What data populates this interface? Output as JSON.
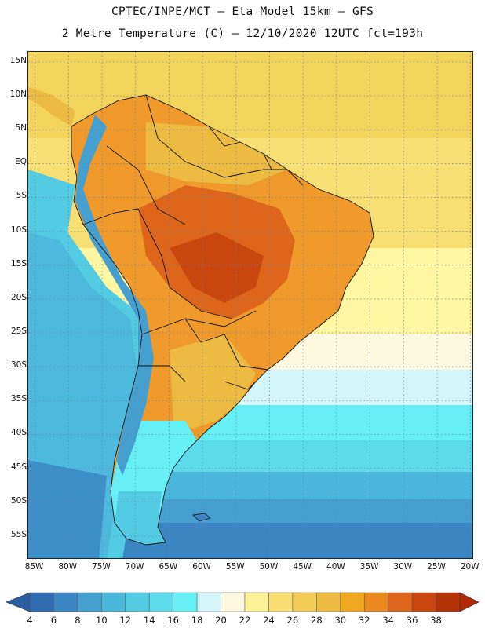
{
  "title": {
    "line1": "CPTEC/INPE/MCT –  Eta Model 15km – GFS",
    "line2": "2 Metre Temperature (C) – 12/10/2020 12UTC fct=193h"
  },
  "map": {
    "lon_range": [
      -86,
      -19.5
    ],
    "lat_range": [
      -58.5,
      16.5
    ],
    "lat_ticks": [
      "15N",
      "10N",
      "5N",
      "EQ",
      "5S",
      "10S",
      "15S",
      "20S",
      "25S",
      "30S",
      "35S",
      "40S",
      "45S",
      "50S",
      "55S"
    ],
    "lon_ticks": [
      "85W",
      "80W",
      "75W",
      "70W",
      "65W",
      "60W",
      "55W",
      "50W",
      "45W",
      "40W",
      "35W",
      "30W",
      "25W",
      "20W"
    ]
  },
  "colorbar": {
    "labels": [
      "4",
      "6",
      "8",
      "10",
      "12",
      "14",
      "16",
      "18",
      "20",
      "22",
      "24",
      "26",
      "28",
      "30",
      "32",
      "34",
      "36",
      "38"
    ],
    "colors": [
      "#2f6db0",
      "#3a85c2",
      "#46a0cf",
      "#4cb7dc",
      "#52cbe3",
      "#5ddbea",
      "#66f0f5",
      "#d4f6fb",
      "#fdf8e0",
      "#fef299",
      "#f8dd72",
      "#f2cc57",
      "#edba42",
      "#f0a820",
      "#ea8a1e",
      "#de661a",
      "#c9470f",
      "#b43208"
    ],
    "low_color": "#2a5ea3",
    "high_color": "#b02a05"
  }
}
